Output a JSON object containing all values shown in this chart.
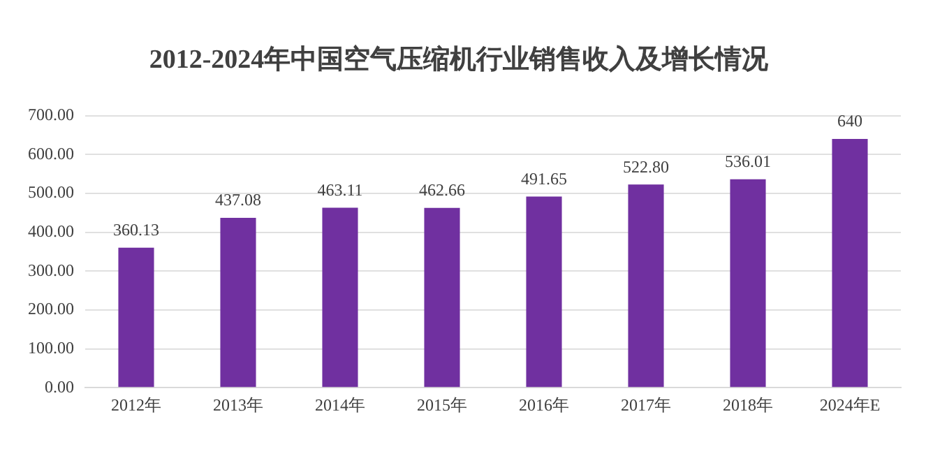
{
  "chart_data": {
    "type": "bar",
    "title": "2012-2024年中国空气压缩机行业销售收入及增长情况",
    "categories": [
      "2012年",
      "2013年",
      "2014年",
      "2015年",
      "2016年",
      "2017年",
      "2018年",
      "2024年E"
    ],
    "values": [
      360.13,
      437.08,
      463.11,
      462.66,
      491.65,
      522.8,
      536.01,
      640
    ],
    "value_labels": [
      "360.13",
      "437.08",
      "463.11",
      "462.66",
      "491.65",
      "522.80",
      "536.01",
      "640"
    ],
    "color": "#7030a0",
    "ylim": [
      0,
      700
    ],
    "yticks": [
      {
        "value": 0,
        "label": "0.00"
      },
      {
        "value": 100,
        "label": "100.00"
      },
      {
        "value": 200,
        "label": "200.00"
      },
      {
        "value": 300,
        "label": "300.00"
      },
      {
        "value": 400,
        "label": "400.00"
      },
      {
        "value": 500,
        "label": "500.00"
      },
      {
        "value": 600,
        "label": "600.00"
      },
      {
        "value": 700,
        "label": "700.00"
      }
    ],
    "grid": "y",
    "legend": false
  }
}
